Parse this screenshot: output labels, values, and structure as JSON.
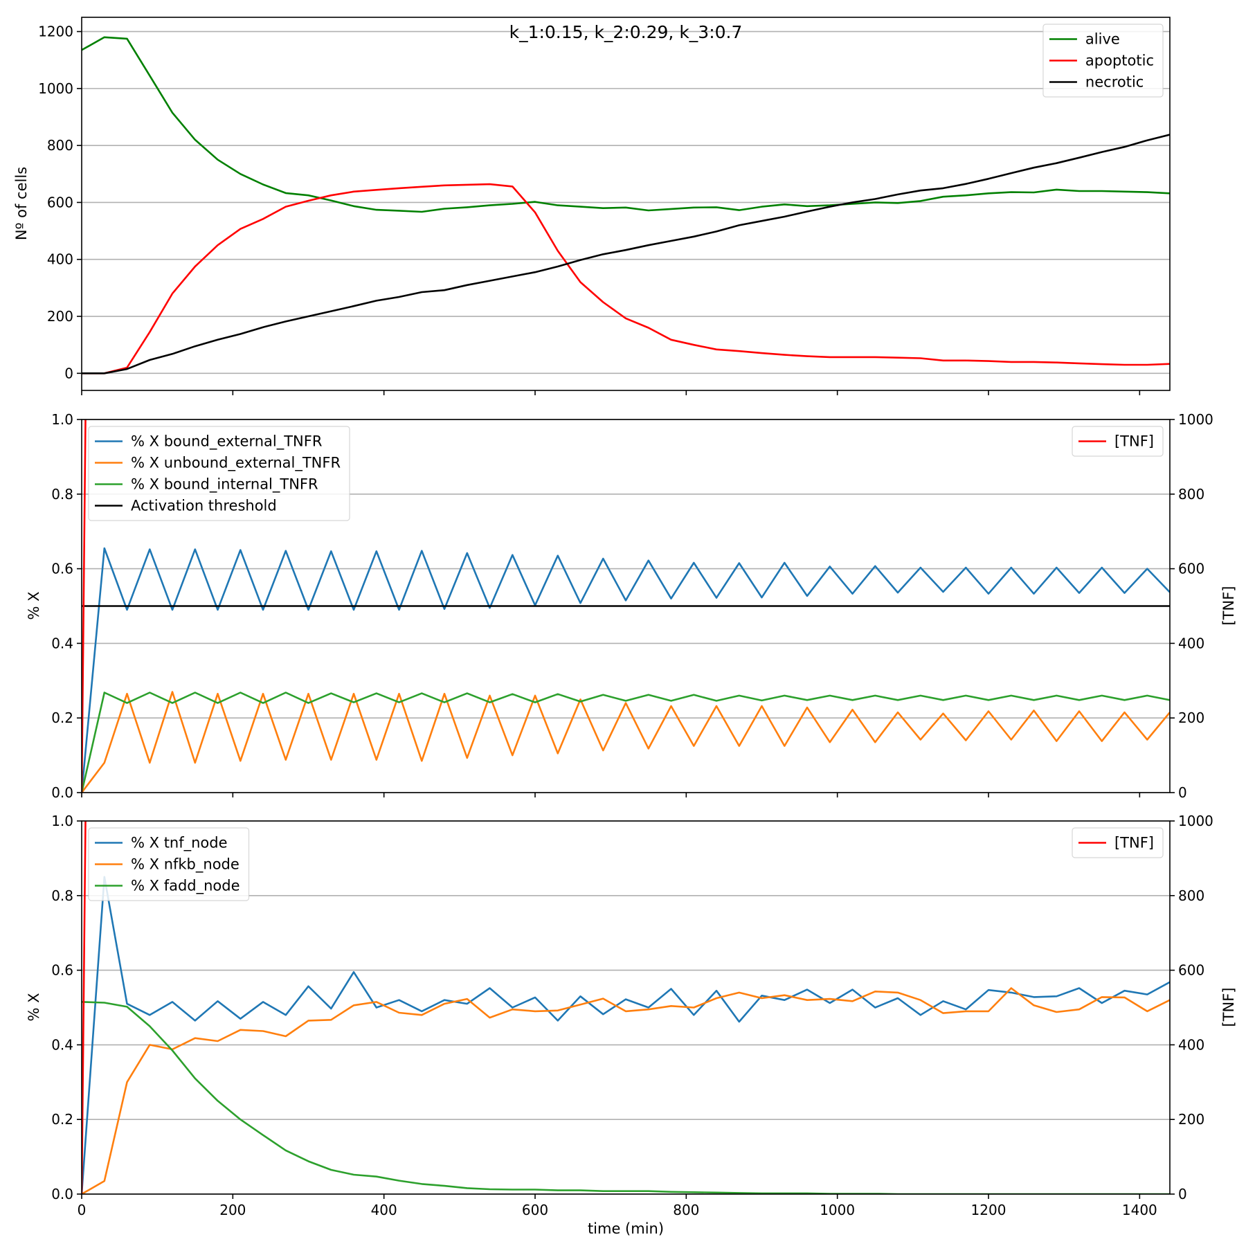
{
  "chart_data": [
    {
      "type": "line",
      "id": "cells",
      "title": "k_1:0.15, k_2:0.29, k_3:0.7",
      "ylabel": "Nº of cells",
      "xlabel": "",
      "xlim": [
        0,
        1440
      ],
      "ylim": [
        -60,
        1250
      ],
      "xticks": [
        0,
        200,
        400,
        600,
        800,
        1000,
        1200,
        1400
      ],
      "xtick_labels_visible": false,
      "yticks": [
        0,
        200,
        400,
        600,
        800,
        1000,
        1200
      ],
      "grid": "y",
      "legend_position": "top-right",
      "x": [
        0,
        30,
        60,
        90,
        120,
        150,
        180,
        210,
        240,
        270,
        300,
        330,
        360,
        390,
        420,
        450,
        480,
        510,
        540,
        570,
        600,
        630,
        660,
        690,
        720,
        750,
        780,
        810,
        840,
        870,
        900,
        930,
        960,
        990,
        1020,
        1050,
        1080,
        1110,
        1140,
        1170,
        1200,
        1230,
        1260,
        1290,
        1320,
        1350,
        1380,
        1410,
        1440
      ],
      "series": [
        {
          "name": "alive",
          "color": "#008000",
          "values": [
            1135,
            1180,
            1175,
            1045,
            915,
            820,
            750,
            700,
            663,
            633,
            625,
            607,
            587,
            574,
            571,
            567,
            578,
            583,
            590,
            595,
            602,
            590,
            585,
            580,
            582,
            572,
            577,
            582,
            583,
            573,
            585,
            593,
            587,
            590,
            595,
            600,
            598,
            605,
            620,
            625,
            632,
            636,
            635,
            645,
            640,
            640,
            638,
            636,
            632
          ]
        },
        {
          "name": "apoptotic",
          "color": "#ff0000",
          "values": [
            0,
            0,
            20,
            145,
            280,
            375,
            450,
            507,
            542,
            585,
            606,
            625,
            638,
            644,
            650,
            655,
            660,
            662,
            664,
            656,
            565,
            430,
            320,
            250,
            193,
            160,
            118,
            100,
            84,
            78,
            71,
            65,
            60,
            57,
            57,
            57,
            55,
            53,
            45,
            45,
            43,
            40,
            40,
            38,
            35,
            32,
            30,
            30,
            33
          ]
        },
        {
          "name": "necrotic",
          "color": "#000000",
          "values": [
            0,
            0,
            15,
            47,
            68,
            95,
            118,
            138,
            162,
            182,
            200,
            218,
            236,
            255,
            268,
            285,
            292,
            310,
            325,
            340,
            355,
            375,
            398,
            418,
            433,
            450,
            465,
            480,
            498,
            520,
            535,
            550,
            568,
            585,
            600,
            612,
            628,
            642,
            650,
            665,
            683,
            703,
            722,
            738,
            757,
            777,
            795,
            818,
            838
          ]
        }
      ]
    },
    {
      "type": "line",
      "id": "receptors",
      "ylabel": "% X",
      "y2label": "[TNF]",
      "xlabel": "",
      "xlim": [
        0,
        1440
      ],
      "ylim": [
        0,
        1.0
      ],
      "y2lim": [
        0,
        1000
      ],
      "xticks": [
        0,
        200,
        400,
        600,
        800,
        1000,
        1200,
        1400
      ],
      "xtick_labels_visible": false,
      "yticks": [
        0.0,
        0.2,
        0.4,
        0.6,
        0.8,
        1.0
      ],
      "ytick_labels": [
        "0.0",
        "0.2",
        "0.4",
        "0.6",
        "0.8",
        "1.0"
      ],
      "y2ticks": [
        0,
        200,
        400,
        600,
        800,
        1000
      ],
      "grid": "y",
      "legend_position": "top-left",
      "legend2_position": "top-right",
      "x": [
        0,
        30,
        60,
        90,
        120,
        150,
        180,
        210,
        240,
        270,
        300,
        330,
        360,
        390,
        420,
        450,
        480,
        510,
        540,
        570,
        600,
        630,
        660,
        690,
        720,
        750,
        780,
        810,
        840,
        870,
        900,
        930,
        960,
        990,
        1020,
        1050,
        1080,
        1110,
        1140,
        1170,
        1200,
        1230,
        1260,
        1290,
        1320,
        1350,
        1380,
        1410,
        1440
      ],
      "series": [
        {
          "name": "% X bound_external_TNFR",
          "color": "#1f77b4",
          "values": [
            0.0,
            0.655,
            0.49,
            0.652,
            0.49,
            0.652,
            0.49,
            0.65,
            0.49,
            0.648,
            0.49,
            0.647,
            0.49,
            0.647,
            0.49,
            0.648,
            0.492,
            0.642,
            0.495,
            0.637,
            0.502,
            0.635,
            0.508,
            0.627,
            0.515,
            0.622,
            0.52,
            0.616,
            0.522,
            0.615,
            0.523,
            0.616,
            0.527,
            0.606,
            0.533,
            0.607,
            0.536,
            0.603,
            0.538,
            0.603,
            0.533,
            0.603,
            0.533,
            0.603,
            0.535,
            0.603,
            0.535,
            0.6,
            0.537
          ]
        },
        {
          "name": "% X unbound_external_TNFR",
          "color": "#ff7f0e",
          "values": [
            0.0,
            0.08,
            0.265,
            0.08,
            0.27,
            0.08,
            0.265,
            0.085,
            0.265,
            0.088,
            0.265,
            0.088,
            0.265,
            0.088,
            0.265,
            0.085,
            0.265,
            0.093,
            0.26,
            0.1,
            0.26,
            0.105,
            0.25,
            0.113,
            0.24,
            0.118,
            0.232,
            0.125,
            0.232,
            0.125,
            0.232,
            0.125,
            0.228,
            0.135,
            0.222,
            0.135,
            0.215,
            0.142,
            0.212,
            0.14,
            0.218,
            0.142,
            0.22,
            0.138,
            0.218,
            0.138,
            0.215,
            0.142,
            0.215
          ]
        },
        {
          "name": "% X bound_internal_TNFR",
          "color": "#2ca02c",
          "values": [
            0.0,
            0.268,
            0.24,
            0.268,
            0.24,
            0.268,
            0.24,
            0.268,
            0.24,
            0.268,
            0.24,
            0.266,
            0.242,
            0.266,
            0.242,
            0.266,
            0.242,
            0.266,
            0.242,
            0.264,
            0.242,
            0.264,
            0.244,
            0.262,
            0.246,
            0.262,
            0.246,
            0.262,
            0.246,
            0.26,
            0.247,
            0.26,
            0.248,
            0.26,
            0.248,
            0.26,
            0.248,
            0.26,
            0.248,
            0.26,
            0.248,
            0.26,
            0.248,
            0.26,
            0.248,
            0.26,
            0.248,
            0.26,
            0.248
          ]
        },
        {
          "name": "Activation threshold",
          "color": "#000000",
          "values": [
            0.5,
            0.5,
            0.5,
            0.5,
            0.5,
            0.5,
            0.5,
            0.5,
            0.5,
            0.5,
            0.5,
            0.5,
            0.5,
            0.5,
            0.5,
            0.5,
            0.5,
            0.5,
            0.5,
            0.5,
            0.5,
            0.5,
            0.5,
            0.5,
            0.5,
            0.5,
            0.5,
            0.5,
            0.5,
            0.5,
            0.5,
            0.5,
            0.5,
            0.5,
            0.5,
            0.5,
            0.5,
            0.5,
            0.5,
            0.5,
            0.5,
            0.5,
            0.5,
            0.5,
            0.5,
            0.5,
            0.5,
            0.5,
            0.5
          ]
        }
      ],
      "secondary_series": [
        {
          "name": "[TNF]",
          "color": "#ff0000",
          "x": [
            0,
            5,
            7
          ],
          "values": [
            0,
            1000,
            1200
          ]
        }
      ]
    },
    {
      "type": "line",
      "id": "nodes",
      "ylabel": "% X",
      "y2label": "[TNF]",
      "xlabel": "time (min)",
      "xlim": [
        0,
        1440
      ],
      "ylim": [
        0,
        1.0
      ],
      "y2lim": [
        0,
        1000
      ],
      "xticks": [
        0,
        200,
        400,
        600,
        800,
        1000,
        1200,
        1400
      ],
      "xtick_labels_visible": true,
      "yticks": [
        0.0,
        0.2,
        0.4,
        0.6,
        0.8,
        1.0
      ],
      "ytick_labels": [
        "0.0",
        "0.2",
        "0.4",
        "0.6",
        "0.8",
        "1.0"
      ],
      "y2ticks": [
        0,
        200,
        400,
        600,
        800,
        1000
      ],
      "grid": "y",
      "legend_position": "top-left",
      "legend2_position": "top-right",
      "x": [
        0,
        30,
        60,
        90,
        120,
        150,
        180,
        210,
        240,
        270,
        300,
        330,
        360,
        390,
        420,
        450,
        480,
        510,
        540,
        570,
        600,
        630,
        660,
        690,
        720,
        750,
        780,
        810,
        840,
        870,
        900,
        930,
        960,
        990,
        1020,
        1050,
        1080,
        1110,
        1140,
        1170,
        1200,
        1230,
        1260,
        1290,
        1320,
        1350,
        1380,
        1410,
        1440
      ],
      "series": [
        {
          "name": "% X tnf_node",
          "color": "#1f77b4",
          "values": [
            0.0,
            0.85,
            0.51,
            0.48,
            0.515,
            0.465,
            0.517,
            0.47,
            0.515,
            0.48,
            0.557,
            0.497,
            0.595,
            0.5,
            0.52,
            0.49,
            0.52,
            0.51,
            0.552,
            0.5,
            0.527,
            0.465,
            0.53,
            0.482,
            0.522,
            0.5,
            0.55,
            0.48,
            0.545,
            0.462,
            0.532,
            0.52,
            0.548,
            0.512,
            0.548,
            0.5,
            0.525,
            0.48,
            0.517,
            0.495,
            0.547,
            0.54,
            0.528,
            0.53,
            0.552,
            0.512,
            0.545,
            0.535,
            0.568
          ]
        },
        {
          "name": "% X nfkb_node",
          "color": "#ff7f0e",
          "values": [
            0.0,
            0.035,
            0.3,
            0.4,
            0.388,
            0.418,
            0.41,
            0.44,
            0.437,
            0.423,
            0.465,
            0.467,
            0.506,
            0.515,
            0.486,
            0.48,
            0.51,
            0.523,
            0.473,
            0.495,
            0.49,
            0.492,
            0.508,
            0.524,
            0.49,
            0.495,
            0.504,
            0.5,
            0.525,
            0.54,
            0.525,
            0.533,
            0.52,
            0.523,
            0.517,
            0.543,
            0.54,
            0.52,
            0.485,
            0.49,
            0.49,
            0.552,
            0.506,
            0.488,
            0.495,
            0.528,
            0.527,
            0.49,
            0.52
          ]
        },
        {
          "name": "% X fadd_node",
          "color": "#2ca02c",
          "values": [
            0.515,
            0.513,
            0.502,
            0.45,
            0.385,
            0.31,
            0.25,
            0.2,
            0.158,
            0.117,
            0.088,
            0.065,
            0.052,
            0.047,
            0.036,
            0.027,
            0.022,
            0.016,
            0.013,
            0.012,
            0.012,
            0.01,
            0.01,
            0.008,
            0.008,
            0.008,
            0.006,
            0.005,
            0.004,
            0.003,
            0.002,
            0.002,
            0.002,
            0.001,
            0.001,
            0.001,
            0.0,
            0.0,
            0.0,
            0.0,
            0.0,
            0.0,
            0.0,
            0.0,
            0.0,
            0.0,
            0.0,
            0.0,
            0.0
          ]
        }
      ],
      "secondary_series": [
        {
          "name": "[TNF]",
          "color": "#ff0000",
          "x": [
            0,
            5,
            7
          ],
          "values": [
            0,
            1000,
            1200
          ]
        }
      ]
    }
  ]
}
